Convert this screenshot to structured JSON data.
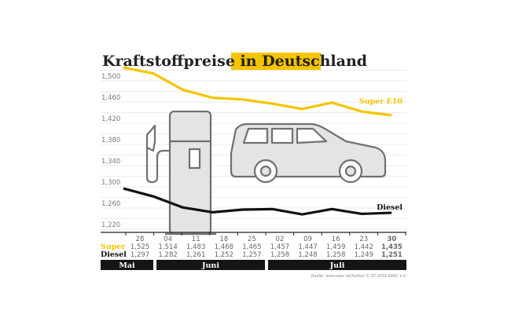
{
  "chart_data": {
    "type": "line",
    "title_part1": "Kraftstoffpreise in ",
    "title_highlight": "Deutschland",
    "categories": [
      "28",
      "04",
      "11",
      "18",
      "25",
      "02",
      "09",
      "16",
      "23",
      "30"
    ],
    "months": [
      "Mai",
      "Juni",
      "Juli"
    ],
    "ylim": [
      1220,
      1520
    ],
    "yticks": [
      "1,500",
      "1,460",
      "1,420",
      "1,380",
      "1,340",
      "1,300",
      "1,260",
      "1,220"
    ],
    "ytick_values": [
      1500,
      1460,
      1420,
      1380,
      1340,
      1300,
      1260,
      1220
    ],
    "grid": true,
    "series": [
      {
        "name": "Super E10",
        "row_label": "Super",
        "color": "#f5c400",
        "values": [
          1525,
          1514,
          1483,
          1468,
          1465,
          1457,
          1447,
          1459,
          1442,
          1435
        ],
        "labels": [
          "1,525",
          "1,514",
          "1,483",
          "1,468",
          "1,465",
          "1,457",
          "1,447",
          "1,459",
          "1,442",
          "1,435"
        ]
      },
      {
        "name": "Diesel",
        "row_label": "Diesel",
        "color": "#111111",
        "values": [
          1297,
          1282,
          1261,
          1252,
          1257,
          1258,
          1248,
          1258,
          1249,
          1251
        ],
        "labels": [
          "1,297",
          "1,282",
          "1,261",
          "1,252",
          "1,257",
          "1,258",
          "1,248",
          "1,258",
          "1,249",
          "1,251"
        ]
      }
    ],
    "source": "Quelle: www.adac.de/tanken  © 07.2019  ADAC e.V.",
    "icons": [
      "fuel-pump-icon",
      "car-icon"
    ]
  }
}
